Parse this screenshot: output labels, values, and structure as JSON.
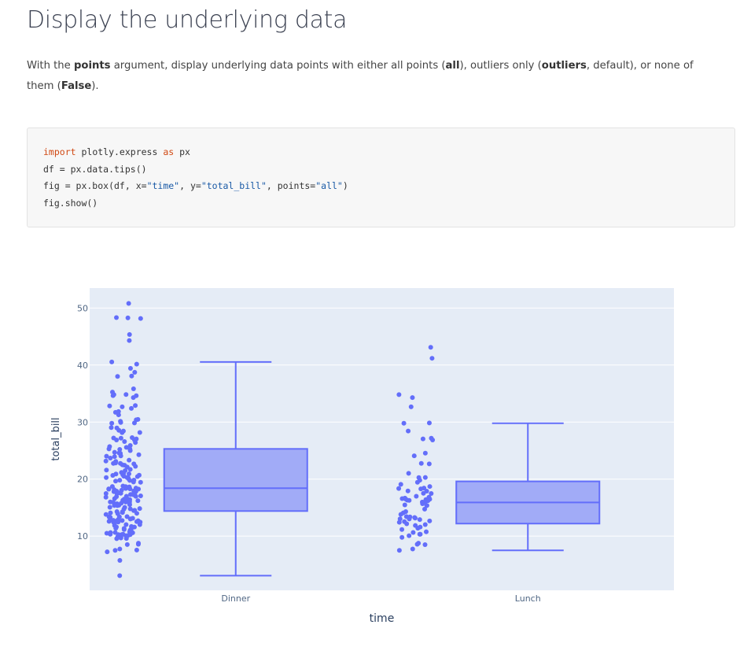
{
  "page": {
    "title": "Display the underlying data",
    "desc": {
      "t1": "With the ",
      "k1": "points",
      "t2": " argument, display underlying data points with either all points (",
      "k2": "all",
      "t3": "), outliers only (",
      "k3": "outliers",
      "t4": ", default), or none of them (",
      "k4": "False",
      "t5": ")."
    }
  },
  "code": {
    "l1_kw1": "import",
    "l1_mid": " plotly.express ",
    "l1_kw2": "as",
    "l1_end": " px",
    "l2": "df = px.data.tips()",
    "l3_a": "fig = px.box(df, x=",
    "l3_s1": "\"time\"",
    "l3_b": ", y=",
    "l3_s2": "\"total_bill\"",
    "l3_c": ", points=",
    "l3_s3": "\"all\"",
    "l3_d": ")",
    "l4": "fig.show()"
  },
  "chart_data": {
    "type": "box",
    "xlabel": "time",
    "ylabel": "total_bill",
    "ylim": [
      0.5,
      53.5
    ],
    "yticks": [
      10,
      20,
      30,
      40,
      50
    ],
    "grid": true,
    "colors": {
      "box_fill": "#a1abf7",
      "box_line": "#636efa",
      "points": "#636efa",
      "plot_bg": "#e5ecf6"
    },
    "categories": [
      "Dinner",
      "Lunch"
    ],
    "boxes": [
      {
        "category": "Dinner",
        "lower_fence": 3.07,
        "q1": 14.4,
        "median": 18.4,
        "q3": 25.3,
        "upper_fence": 40.55,
        "points": [
          50.81,
          48.33,
          48.27,
          48.17,
          45.35,
          44.3,
          40.55,
          40.17,
          39.42,
          38.73,
          38.07,
          38.01,
          35.83,
          35.26,
          34.83,
          34.81,
          34.65,
          34.3,
          34.63,
          32.9,
          32.83,
          32.68,
          32.4,
          31.85,
          31.71,
          31.27,
          30.46,
          30.4,
          30.14,
          29.93,
          29.85,
          29.8,
          29.03,
          28.97,
          28.55,
          28.44,
          28.17,
          28.15,
          27.28,
          27.2,
          27.18,
          27.05,
          26.88,
          26.86,
          26.59,
          26.41,
          25.89,
          25.71,
          25.56,
          25.29,
          25.28,
          25.21,
          25.0,
          24.71,
          24.59,
          24.55,
          24.52,
          24.27,
          24.06,
          24.01,
          23.95,
          23.68,
          23.33,
          23.17,
          23.1,
          22.82,
          22.76,
          22.75,
          22.67,
          22.49,
          22.42,
          22.23,
          22.12,
          21.7,
          21.58,
          21.5,
          21.16,
          21.01,
          20.92,
          20.9,
          20.76,
          20.69,
          20.65,
          20.49,
          20.45,
          20.29,
          20.27,
          20.23,
          20.08,
          19.81,
          19.82,
          19.77,
          19.65,
          19.49,
          19.44,
          18.78,
          18.71,
          18.69,
          18.64,
          18.43,
          18.35,
          18.29,
          18.28,
          18.26,
          18.24,
          18.15,
          18.04,
          17.92,
          17.89,
          17.82,
          17.81,
          17.78,
          17.59,
          17.51,
          17.47,
          17.46,
          17.31,
          17.29,
          17.26,
          17.07,
          16.99,
          16.97,
          16.93,
          16.82,
          16.58,
          16.49,
          16.45,
          16.4,
          16.31,
          16.29,
          16.27,
          16.21,
          16.04,
          16.0,
          15.98,
          15.95,
          15.81,
          15.77,
          15.69,
          15.53,
          15.48,
          15.42,
          15.38,
          15.36,
          15.06,
          15.04,
          14.83,
          14.78,
          14.73,
          14.52,
          14.48,
          14.31,
          14.26,
          14.15,
          14.07,
          14.0,
          13.94,
          13.81,
          13.42,
          13.39,
          13.37,
          13.28,
          13.27,
          13.16,
          13.13,
          13.03,
          13.0,
          12.9,
          12.76,
          12.74,
          12.69,
          12.66,
          12.6,
          12.54,
          12.48,
          12.46,
          12.43,
          12.26,
          12.03,
          12.02,
          11.87,
          11.69,
          11.61,
          11.59,
          11.38,
          11.35,
          11.24,
          11.17,
          11.02,
          10.77,
          10.65,
          10.63,
          10.59,
          10.51,
          10.34,
          10.33,
          10.29,
          10.27,
          10.26,
          10.09,
          10.07,
          9.94,
          9.78,
          9.68,
          9.6,
          9.55,
          8.77,
          8.58,
          8.52,
          7.74,
          7.56,
          7.51,
          7.25,
          5.75,
          3.07
        ]
      },
      {
        "category": "Lunch",
        "lower_fence": 7.51,
        "q1": 12.2,
        "median": 15.9,
        "q3": 19.6,
        "upper_fence": 29.8,
        "points": [
          43.11,
          41.19,
          34.81,
          34.3,
          32.68,
          29.8,
          29.85,
          28.44,
          27.18,
          27.05,
          26.86,
          24.55,
          24.08,
          22.76,
          22.67,
          21.01,
          20.29,
          20.27,
          19.81,
          19.44,
          19.08,
          18.71,
          18.43,
          18.35,
          18.28,
          17.92,
          17.89,
          17.51,
          17.47,
          16.99,
          16.82,
          16.66,
          16.58,
          16.49,
          16.47,
          16.4,
          16.31,
          16.27,
          16.21,
          16.0,
          15.98,
          15.69,
          15.48,
          15.38,
          15.36,
          14.73,
          14.31,
          14.07,
          13.81,
          13.42,
          13.37,
          13.27,
          13.16,
          13.03,
          13.0,
          12.9,
          12.66,
          12.54,
          12.43,
          12.16,
          12.03,
          11.87,
          11.59,
          11.38,
          11.17,
          10.77,
          10.65,
          10.34,
          10.33,
          10.07,
          9.78,
          8.77,
          8.58,
          8.51,
          7.74,
          7.51
        ]
      }
    ]
  }
}
